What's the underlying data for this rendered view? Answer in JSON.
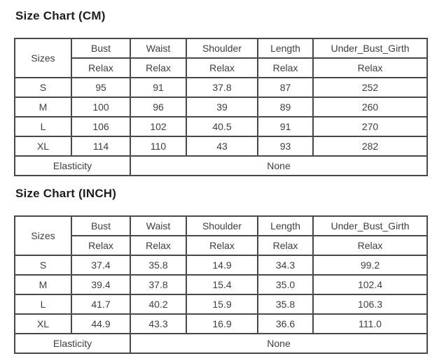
{
  "size_charts": [
    {
      "title": "Size Chart (CM)",
      "corner_header": "Sizes",
      "columns": [
        "Bust",
        "Waist",
        "Shoulder",
        "Length",
        "Under_Bust_Girth"
      ],
      "fit_labels": [
        "Relax",
        "Relax",
        "Relax",
        "Relax",
        "Relax"
      ],
      "rows": [
        {
          "size": "S",
          "values": [
            "95",
            "91",
            "37.8",
            "87",
            "252"
          ]
        },
        {
          "size": "M",
          "values": [
            "100",
            "96",
            "39",
            "89",
            "260"
          ]
        },
        {
          "size": "L",
          "values": [
            "106",
            "102",
            "40.5",
            "91",
            "270"
          ]
        },
        {
          "size": "XL",
          "values": [
            "114",
            "110",
            "43",
            "93",
            "282"
          ]
        }
      ],
      "footer": {
        "label": "Elasticity",
        "value": "None"
      }
    },
    {
      "title": "Size Chart (INCH)",
      "corner_header": "Sizes",
      "columns": [
        "Bust",
        "Waist",
        "Shoulder",
        "Length",
        "Under_Bust_Girth"
      ],
      "fit_labels": [
        "Relax",
        "Relax",
        "Relax",
        "Relax",
        "Relax"
      ],
      "rows": [
        {
          "size": "S",
          "values": [
            "37.4",
            "35.8",
            "14.9",
            "34.3",
            "99.2"
          ]
        },
        {
          "size": "M",
          "values": [
            "39.4",
            "37.8",
            "15.4",
            "35.0",
            "102.4"
          ]
        },
        {
          "size": "L",
          "values": [
            "41.7",
            "40.2",
            "15.9",
            "35.8",
            "106.3"
          ]
        },
        {
          "size": "XL",
          "values": [
            "44.9",
            "43.3",
            "16.9",
            "36.6",
            "111.0"
          ]
        }
      ],
      "footer": {
        "label": "Elasticity",
        "value": "None"
      }
    }
  ]
}
